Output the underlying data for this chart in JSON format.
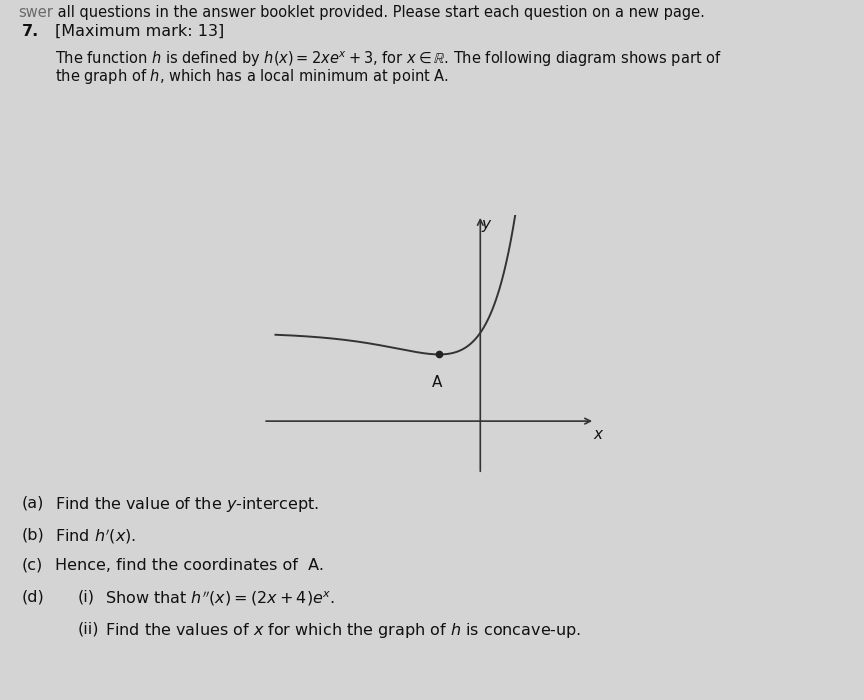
{
  "background_color": "#d4d4d4",
  "graph": {
    "x_min": -5.5,
    "x_max": 2.8,
    "y_min": -2.0,
    "y_max": 7.0,
    "plot_x_min": -5.0,
    "plot_x_max": 1.6,
    "curve_color": "#333333",
    "axis_color": "#333333",
    "line_width": 1.4
  },
  "text_color": "#111111",
  "header_line": "swer all questions in the answer booklet provided. Please start each question on a new page.",
  "q_number": "7.",
  "max_mark": "[Maximum mark: 13]",
  "font_size_main": 11.5,
  "font_size_header": 10.5
}
